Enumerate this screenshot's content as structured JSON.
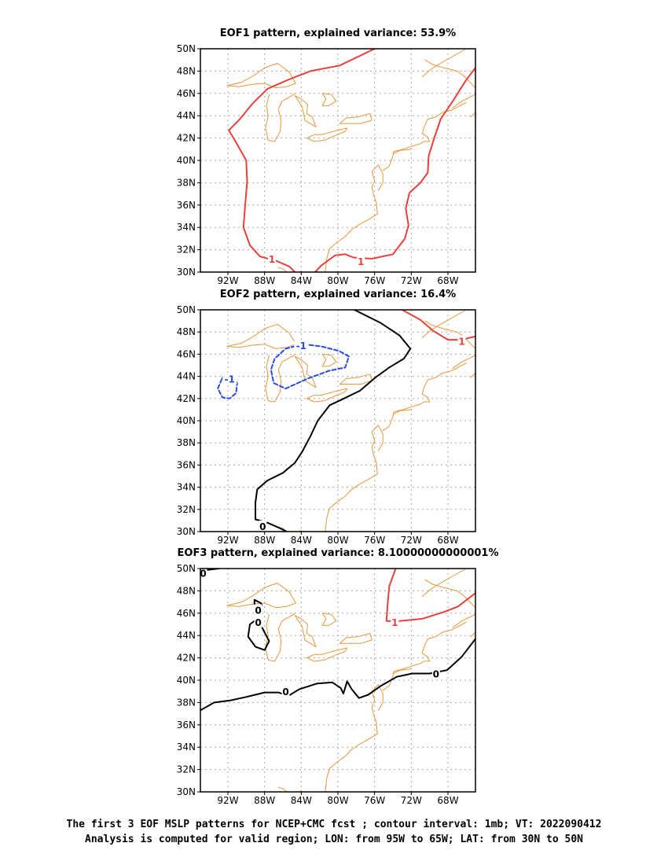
{
  "chart_data": [
    {
      "type": "map",
      "title": "EOF1 pattern, explained variance: 53.9%",
      "x_ticks": [
        "92W",
        "88W",
        "84W",
        "80W",
        "76W",
        "72W",
        "68W"
      ],
      "y_ticks": [
        "30N",
        "32N",
        "34N",
        "36N",
        "38N",
        "40N",
        "42N",
        "44N",
        "46N",
        "48N",
        "50N"
      ],
      "lon_range": [
        -95,
        -65
      ],
      "lat_range": [
        30,
        50
      ],
      "grid": true,
      "contour_labels": [
        {
          "text": "1",
          "color": "#e8413c",
          "lon": -87.2,
          "lat": 31.2
        },
        {
          "text": "1",
          "color": "#e8413c",
          "lon": -77.5,
          "lat": 31.0
        }
      ]
    },
    {
      "type": "map",
      "title": "EOF2 pattern, explained variance: 16.4%",
      "x_ticks": [
        "92W",
        "88W",
        "84W",
        "80W",
        "76W",
        "72W",
        "68W"
      ],
      "y_ticks": [
        "30N",
        "32N",
        "34N",
        "36N",
        "38N",
        "40N",
        "42N",
        "44N",
        "46N",
        "48N",
        "50N"
      ],
      "lon_range": [
        -95,
        -65
      ],
      "lat_range": [
        30,
        50
      ],
      "grid": true,
      "contour_labels": [
        {
          "text": "-1",
          "color": "#2b4be0",
          "lon": -91.8,
          "lat": 43.8
        },
        {
          "text": "-1",
          "color": "#2b4be0",
          "lon": -84.0,
          "lat": 46.8
        },
        {
          "text": "1",
          "color": "#e8413c",
          "lon": -66.5,
          "lat": 47.2
        },
        {
          "text": "0",
          "color": "#000000",
          "lon": -88.2,
          "lat": 30.5
        }
      ]
    },
    {
      "type": "map",
      "title": "EOF3 pattern, explained variance: 8.10000000000001%",
      "x_ticks": [
        "92W",
        "88W",
        "84W",
        "80W",
        "76W",
        "72W",
        "68W"
      ],
      "y_ticks": [
        "30N",
        "32N",
        "34N",
        "36N",
        "38N",
        "40N",
        "42N",
        "44N",
        "46N",
        "48N",
        "50N"
      ],
      "lon_range": [
        -95,
        -65
      ],
      "lat_range": [
        30,
        50
      ],
      "grid": true,
      "contour_labels": [
        {
          "text": "0",
          "color": "#000000",
          "lon": -94.7,
          "lat": 49.6
        },
        {
          "text": "0",
          "color": "#000000",
          "lon": -88.7,
          "lat": 46.3
        },
        {
          "text": "0",
          "color": "#000000",
          "lon": -88.7,
          "lat": 45.2
        },
        {
          "text": "0",
          "color": "#000000",
          "lon": -85.7,
          "lat": 39.0
        },
        {
          "text": "1",
          "color": "#e8413c",
          "lon": -73.8,
          "lat": 45.2
        },
        {
          "text": "0",
          "color": "#000000",
          "lon": -69.3,
          "lat": 40.6
        }
      ]
    }
  ],
  "caption": {
    "line1": "The first 3 EOF MSLP patterns for NCEP+CMC fcst ; contour interval: 1mb; VT: 2022090412",
    "line2": "Analysis is computed for valid region; LON: from 95W to 65W; LAT: from 30N to 50N"
  },
  "colors": {
    "coast": "#e8963c",
    "positive": "#e8413c",
    "negative": "#2b4be0",
    "zero": "#000000",
    "grid": "#a8a8a8"
  }
}
